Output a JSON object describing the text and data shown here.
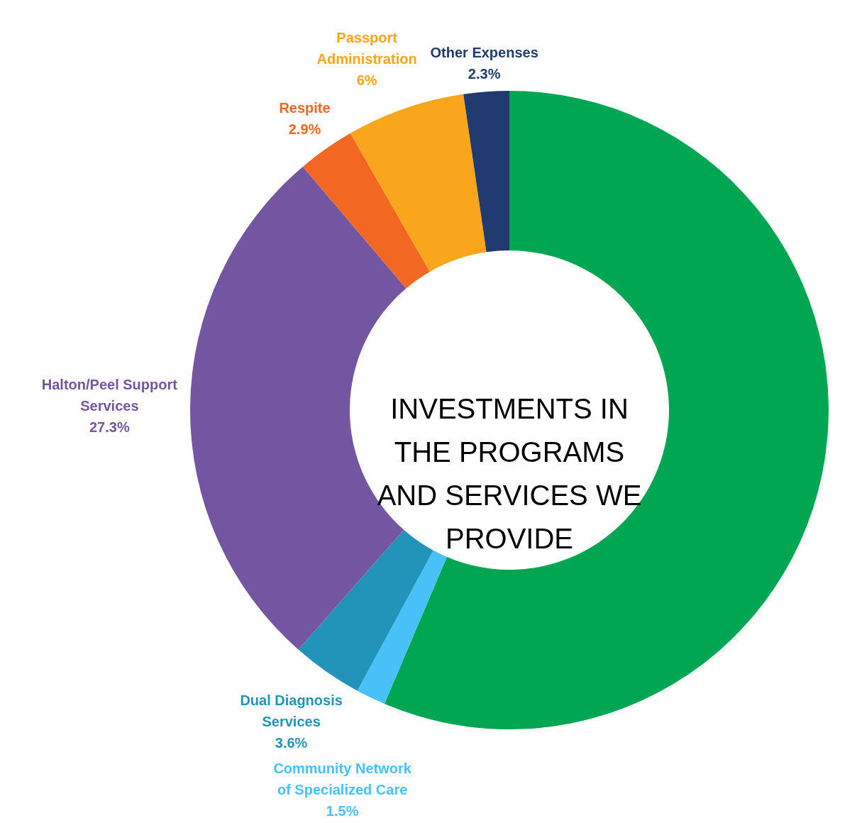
{
  "chart_data": {
    "type": "donut",
    "title": "INVESTMENTS IN THE PROGRAMS AND SERVICES WE PROVIDE",
    "categories": [
      null,
      "Community Network of Specialized Care",
      "Dual Diagnosis Services",
      "Halton/Peel Support Services",
      "Respite",
      "Passport Administration",
      "Other Expenses"
    ],
    "values": [
      56.4,
      1.5,
      3.6,
      27.3,
      2.9,
      6,
      2.3
    ],
    "value_labels": [
      null,
      "1.5%",
      "3.6%",
      "27.3%",
      "2.9%",
      "6%",
      "2.3%"
    ],
    "colors": [
      "#00a651",
      "#47c1f7",
      "#2394b9",
      "#7455a1",
      "#f26722",
      "#f9a61c",
      "#213a6f"
    ]
  }
}
